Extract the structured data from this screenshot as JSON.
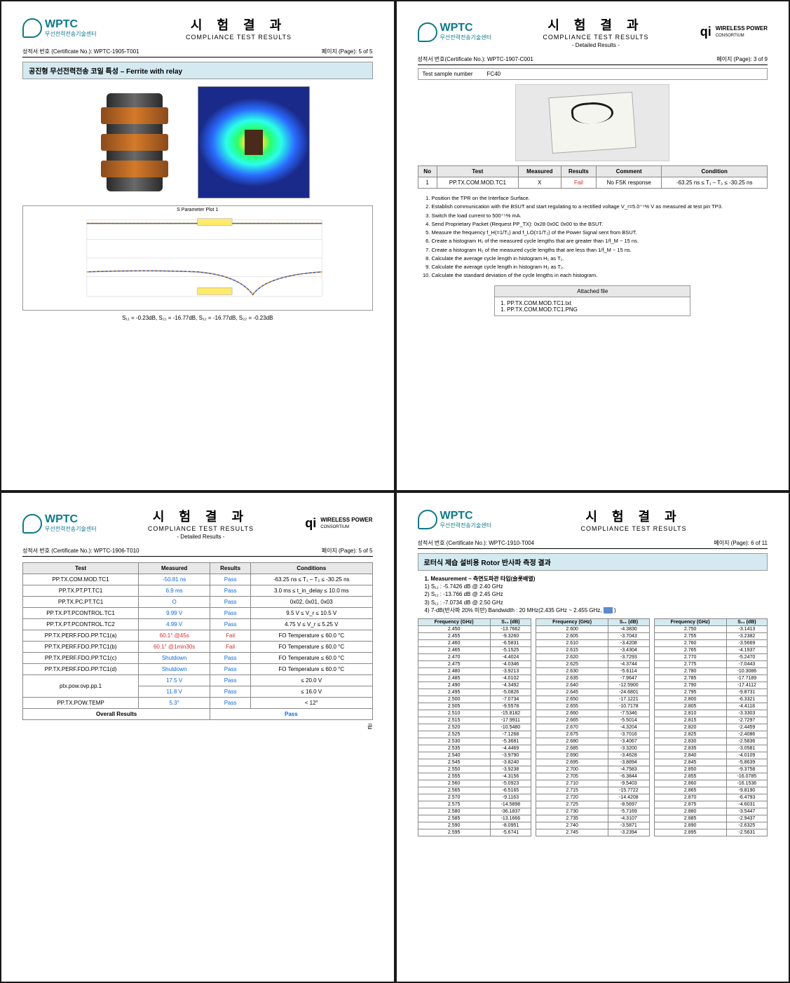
{
  "logo": {
    "name": "WPTC",
    "sub": "무선전력전송기술센터"
  },
  "title": {
    "ko": "시 험 결 과",
    "en": "COMPLIANCE TEST RESULTS",
    "detailed": "- Detailed Results -"
  },
  "qi": {
    "mark": "qi",
    "line1": "WIRELESS POWER",
    "line2": "CONSORTIUM"
  },
  "p1": {
    "cert_label": "성적서 번호 (Certificate No.): WPTC-1905-T001",
    "page": "페이지 (Page):   5 of 5",
    "section": "공진형 무선전력전송 코일 특성 – Ferrite with relay",
    "chart_title": "S Parameter Plot 1",
    "sparam_caption": "S₁₁ = -0.23dB, S₂₁ = -16.77dB, S₁₂ = -16.77dB, S₂₂ = -0.23dB"
  },
  "p2": {
    "cert_label": "성적서 번호(Certificate No.): WPTC-1907-C001",
    "page": "페이지 (Page):   3 of 9",
    "sample_label": "Test sample number",
    "sample_value": "FC40",
    "table_headers": [
      "No",
      "Test",
      "Measured",
      "Results",
      "Comment",
      "Condition"
    ],
    "row": {
      "no": "1",
      "test": "PP.TX.COM.MOD.TC1",
      "measured": "X",
      "results": "Fail",
      "comment": "No FSK response",
      "condition": "-63.25 ns ≤ T₁ – T₂ ≤ -30.25 ns"
    },
    "instructions": [
      "Position the TPR on the Interface Surface.",
      "Establish communication with the BSUT and start regulating to a rectified voltage V_r=5.0⁺⁵% V as measured at test pin TP3.",
      "Switch the load current to 500⁺⁵% mA.",
      "Send Proprietary Packet (Request PP_TX): 0x28 0x0C 0x00 to the BSUT.",
      "Measure the frequency f_H(=1/T₁) and f_LO(=1/T₂) of the Power Signal sent from BSUT.",
      "Create a histogram H₁ of the measured cycle lengths that are greater than 1/f_M − 15 ns.",
      "Create a histogram H₂ of the measured cycle lengths that are less than 1/f_M − 15 ns.",
      "Calculate the average cycle length in histogram H₁ as T₁.",
      "Calculate the average cycle length in histogram H₂ as T₂.",
      "Calculate the standard deviation of the cycle lengths in each histogram."
    ],
    "attached_label": "Attached file",
    "attached_files": [
      "1. PP.TX.COM.MOD.TC1.txt",
      "1. PP.TX.COM.MOD.TC1.PNG"
    ]
  },
  "p3": {
    "cert_label": "성적서 번호 (Certificate No.): WPTC-1906-T010",
    "page": "페이지 (Page):   5 of 5",
    "headers": [
      "Test",
      "Measured",
      "Results",
      "Conditions"
    ],
    "rows": [
      {
        "t": "PP.TX.COM.MOD.TC1",
        "m": "-50.81 ns",
        "r": "Pass",
        "c": "-63.25 ns ≤ T₁ – T₂ ≤ -30.25 ns"
      },
      {
        "t": "PP.TX.PT.PT.TC1",
        "m": "6.9 ms",
        "r": "Pass",
        "c": "3.0 ms ≤ t_in_delay ≤ 10.0 ms"
      },
      {
        "t": "PP.TX.PC.PT.TC1",
        "m": "O",
        "r": "Pass",
        "c": "0x02, 0x01, 0x03"
      },
      {
        "t": "PP.TX.PT.PCONTROL.TC1",
        "m": "9.99 V",
        "r": "Pass",
        "c": "9.5 V ≤ V_r ≤ 10.5 V"
      },
      {
        "t": "PP.TX.PT.PCONTROL.TC2",
        "m": "4.99 V",
        "r": "Pass",
        "c": "4.75 V ≤ V_r ≤ 5.25 V"
      },
      {
        "t": "PP.TX.PERF.FDO.PP.TC1(a)",
        "m": "60.1° @45s",
        "r": "Fail",
        "c": "FO Temperature ≤ 60.0 °C"
      },
      {
        "t": "PP.TX.PERF.FDO.PP.TC1(b)",
        "m": "60.1° @1min30s",
        "r": "Fail",
        "c": "FO Temperature ≤ 60.0 °C"
      },
      {
        "t": "PP.TX.PERF.FDO.PP.TC1(c)",
        "m": "Shutdown",
        "r": "Pass",
        "c": "FO Temperature ≤ 60.0 °C"
      },
      {
        "t": "PP.TX.PERF.FDO.PP.TC1(d)",
        "m": "Shutdown",
        "r": "Pass",
        "c": "FO Temperature ≤ 60.0 °C"
      },
      {
        "t": "ptx.pow.ovp.pp.1",
        "m": "17.5 V",
        "r": "Pass",
        "c": "≤ 20.0 V",
        "span": 2
      },
      {
        "t": "",
        "m": "11.8 V",
        "r": "Pass",
        "c": "≤ 16.0 V"
      },
      {
        "t": "PP.TX.POW.TEMP",
        "m": "5.3°",
        "r": "Pass",
        "c": "< 12°"
      }
    ],
    "overall_label": "Overall Results",
    "overall_value": "Pass",
    "footer": "끝"
  },
  "p4": {
    "cert_label": "성적서 번호 (Certificate No.): WPTC-1910-T004",
    "page": "페이지 (Page):   6 of 11",
    "section": "로터식 제습 설비용 Rotor 반사파 측정 결과",
    "meas_title": "1. Measurement – 측면도파관 타입(슬롯배열)",
    "notes": [
      "1) S₁₁ : -5.7426 dB @ 2.40 GHz",
      "2) S₁₁ : -13.766 dB @ 2.45 GHz",
      "3) S₁₁ : -7.0734 dB @ 2.50 GHz"
    ],
    "note4_a": "4) 7-dB(반사파 20% 미만) Bandwidth : 20 MHz(2.435 GHz ~ 2.455 GHz,",
    "note4_b": ")",
    "headers": [
      "Frequency (GHz)",
      "S₁₁ (dB)"
    ],
    "col1": [
      [
        "2.450",
        "-13.7662"
      ],
      [
        "2.455",
        "-9.3260"
      ],
      [
        "2.460",
        "-6.5831"
      ],
      [
        "2.465",
        "-5.1525"
      ],
      [
        "2.470",
        "-4.4024"
      ],
      [
        "2.475",
        "-4.0346"
      ],
      [
        "2.480",
        "-3.9213"
      ],
      [
        "2.485",
        "-4.0102"
      ],
      [
        "2.490",
        "-4.3492"
      ],
      [
        "2.495",
        "-5.0826"
      ],
      [
        "2.500",
        "-7.0734"
      ],
      [
        "2.505",
        "-9.5578"
      ],
      [
        "2.510",
        "-15.8182"
      ],
      [
        "2.515",
        "-17.9911"
      ],
      [
        "2.520",
        "-10.5480"
      ],
      [
        "2.525",
        "-7.1268"
      ],
      [
        "2.530",
        "-5.3681"
      ],
      [
        "2.535",
        "-4.4469"
      ],
      [
        "2.540",
        "-3.9790"
      ],
      [
        "2.545",
        "-3.8240"
      ],
      [
        "2.550",
        "-3.9238"
      ],
      [
        "2.555",
        "-4.3156"
      ],
      [
        "2.560",
        "-5.0923"
      ],
      [
        "2.565",
        "-6.5165"
      ],
      [
        "2.570",
        "-9.1163"
      ],
      [
        "2.575",
        "-14.5898"
      ],
      [
        "2.580",
        "-36.1837"
      ],
      [
        "2.585",
        "-13.1666"
      ],
      [
        "2.590",
        "-8.0951"
      ],
      [
        "2.595",
        "-5.6741"
      ]
    ],
    "col2": [
      [
        "2.600",
        "-4.3830"
      ],
      [
        "2.605",
        "-3.7043"
      ],
      [
        "2.610",
        "-3.4208"
      ],
      [
        "2.615",
        "-3.4304"
      ],
      [
        "2.620",
        "-3.7293"
      ],
      [
        "2.625",
        "-4.3744"
      ],
      [
        "2.630",
        "-5.6114"
      ],
      [
        "2.635",
        "-7.9647"
      ],
      [
        "2.640",
        "-12.5900"
      ],
      [
        "2.645",
        "-24.6801"
      ],
      [
        "2.650",
        "-17.1221"
      ],
      [
        "2.655",
        "-10.7178"
      ],
      [
        "2.660",
        "-7.5346"
      ],
      [
        "2.665",
        "-5.5014"
      ],
      [
        "2.670",
        "-4.3204"
      ],
      [
        "2.675",
        "-3.7016"
      ],
      [
        "2.680",
        "-3.4067"
      ],
      [
        "2.685",
        "-3.3200"
      ],
      [
        "2.690",
        "-3.4628"
      ],
      [
        "2.695",
        "-3.8894"
      ],
      [
        "2.700",
        "-4.7583"
      ],
      [
        "2.705",
        "-6.3844"
      ],
      [
        "2.710",
        "-9.5403"
      ],
      [
        "2.715",
        "-15.7722"
      ],
      [
        "2.720",
        "-14.4208"
      ],
      [
        "2.725",
        "-8.5697"
      ],
      [
        "2.730",
        "-5.7169"
      ],
      [
        "2.735",
        "-4.3107"
      ],
      [
        "2.740",
        "-3.5871"
      ],
      [
        "2.745",
        "-3.2394"
      ]
    ],
    "col3": [
      [
        "2.750",
        "-3.1413"
      ],
      [
        "2.755",
        "-3.2382"
      ],
      [
        "2.760",
        "-3.5669"
      ],
      [
        "2.765",
        "-4.1937"
      ],
      [
        "2.770",
        "-5.2470"
      ],
      [
        "2.775",
        "-7.0443"
      ],
      [
        "2.780",
        "-10.3086"
      ],
      [
        "2.785",
        "-17.7189"
      ],
      [
        "2.790",
        "-17.4112"
      ],
      [
        "2.795",
        "-9.8731"
      ],
      [
        "2.800",
        "-6.3321"
      ],
      [
        "2.805",
        "-4.4118"
      ],
      [
        "2.810",
        "-3.3303"
      ],
      [
        "2.815",
        "-2.7297"
      ],
      [
        "2.820",
        "-2.4459"
      ],
      [
        "2.825",
        "-2.4086"
      ],
      [
        "2.830",
        "-2.5836"
      ],
      [
        "2.835",
        "-3.0581"
      ],
      [
        "2.840",
        "-4.0109"
      ],
      [
        "2.845",
        "-5.8639"
      ],
      [
        "2.850",
        "-9.3758"
      ],
      [
        "2.855",
        "-16.0785"
      ],
      [
        "2.860",
        "-16.1536"
      ],
      [
        "2.865",
        "-9.8190"
      ],
      [
        "2.870",
        "-6.4793"
      ],
      [
        "2.875",
        "-4.6031"
      ],
      [
        "2.880",
        "-3.5447"
      ],
      [
        "2.885",
        "-2.9437"
      ],
      [
        "2.890",
        "-2.6325"
      ],
      [
        "2.895",
        "-2.5631"
      ]
    ]
  }
}
